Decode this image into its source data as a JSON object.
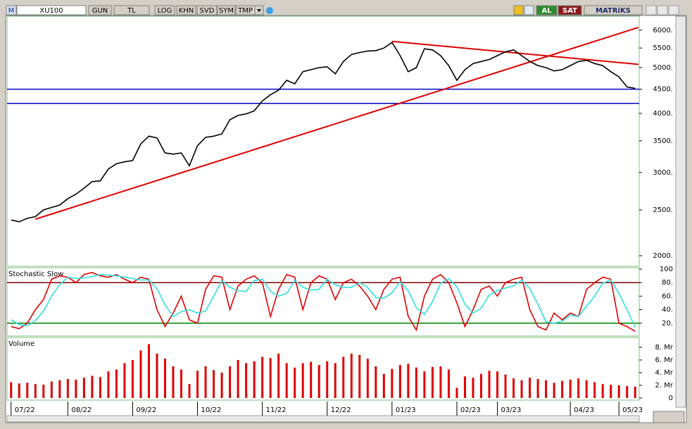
{
  "toolbar": {
    "logo": "M",
    "symbol": "XU100",
    "period": "GUN",
    "currency": "TL",
    "log": "LOG",
    "khn": "KHN",
    "svd": "SVD",
    "sym": "SYM",
    "tmp": "TMP",
    "buy": "AL",
    "sell": "SAT",
    "brand": "MATRiKS"
  },
  "chart_data": [
    {
      "type": "line",
      "log_scale": true,
      "ylim": [
        1900,
        6400
      ],
      "yticks": [
        {
          "value": 2000,
          "label": "2000."
        },
        {
          "value": 2500,
          "label": "2500."
        },
        {
          "value": 3000,
          "label": "3000."
        },
        {
          "value": 3500,
          "label": "3500."
        },
        {
          "value": 4000,
          "label": "4000."
        },
        {
          "value": 4500,
          "label": "4500."
        },
        {
          "value": 5000,
          "label": "5000."
        },
        {
          "value": 5500,
          "label": "5500."
        },
        {
          "value": 6000,
          "label": "6000."
        }
      ],
      "series": [
        {
          "color": "#000000",
          "values": [
            2380,
            2360,
            2400,
            2420,
            2500,
            2530,
            2560,
            2640,
            2700,
            2780,
            2870,
            2880,
            3050,
            3130,
            3160,
            3180,
            3450,
            3580,
            3550,
            3300,
            3280,
            3300,
            3100,
            3420,
            3560,
            3580,
            3620,
            3880,
            3960,
            3990,
            4050,
            4250,
            4380,
            4480,
            4700,
            4620,
            4900,
            4950,
            5000,
            5020,
            4850,
            5150,
            5330,
            5380,
            5420,
            5430,
            5500,
            5650,
            5300,
            4900,
            5000,
            5480,
            5450,
            5300,
            5050,
            4700,
            4950,
            5100,
            5150,
            5200,
            5300,
            5400,
            5450,
            5300,
            5150,
            5050,
            5000,
            4920,
            4950,
            5050,
            5150,
            5180,
            5100,
            5050,
            4900,
            4780,
            4550,
            4520
          ]
        }
      ],
      "trend_lines": [
        {
          "color": "#e00000",
          "x": [
            3,
            77.4
          ],
          "y": [
            2390,
            6080
          ]
        },
        {
          "color": "#e00000",
          "x": [
            47,
            77.4
          ],
          "y": [
            5680,
            5080
          ]
        }
      ],
      "hlines": [
        {
          "color": "#0000c0",
          "value": 4500
        },
        {
          "color": "#0000c0",
          "value": 4200
        }
      ]
    },
    {
      "type": "line",
      "title": "Stochastic Slow",
      "ylim": [
        0,
        100
      ],
      "yticks": [
        {
          "value": 20,
          "label": "20."
        },
        {
          "value": 40,
          "label": "40."
        },
        {
          "value": 60,
          "label": "60."
        },
        {
          "value": 80,
          "label": "80."
        },
        100
      ],
      "series": [
        {
          "color": "#e00000",
          "values": [
            15,
            12,
            20,
            40,
            55,
            85,
            90,
            88,
            80,
            92,
            95,
            90,
            88,
            92,
            85,
            80,
            88,
            85,
            40,
            15,
            35,
            60,
            25,
            20,
            70,
            90,
            88,
            40,
            75,
            85,
            90,
            80,
            30,
            70,
            92,
            88,
            40,
            80,
            90,
            85,
            55,
            80,
            85,
            75,
            60,
            40,
            70,
            85,
            88,
            30,
            10,
            60,
            85,
            92,
            80,
            50,
            15,
            40,
            70,
            75,
            60,
            80,
            85,
            88,
            40,
            15,
            10,
            35,
            25,
            35,
            30,
            70,
            80,
            88,
            85,
            20,
            15,
            8
          ]
        },
        {
          "color": "#30e0e0",
          "values": [
            25,
            18,
            16,
            24,
            38,
            60,
            77,
            88,
            86,
            87,
            89,
            92,
            91,
            90,
            88,
            86,
            84,
            84,
            71,
            47,
            30,
            37,
            40,
            35,
            38,
            60,
            83,
            73,
            68,
            67,
            83,
            85,
            67,
            60,
            64,
            83,
            73,
            69,
            70,
            85,
            77,
            73,
            73,
            80,
            73,
            58,
            57,
            65,
            81,
            68,
            43,
            33,
            52,
            79,
            86,
            74,
            48,
            35,
            42,
            62,
            68,
            72,
            75,
            84,
            71,
            48,
            22,
            20,
            23,
            32,
            30,
            45,
            60,
            79,
            84,
            64,
            40,
            14
          ]
        }
      ],
      "hlines": [
        {
          "color": "#800000",
          "value": 80
        },
        {
          "color": "#008000",
          "value": 20
        }
      ]
    },
    {
      "type": "bar",
      "title": "Volume",
      "ylim": [
        0,
        9.5
      ],
      "yticks": [
        0,
        {
          "value": 2,
          "label": "2. Mr"
        },
        {
          "value": 4,
          "label": "4. Mr"
        },
        {
          "value": 6,
          "label": "6. Mr"
        },
        {
          "value": 8,
          "label": "8. Mr"
        }
      ],
      "color": "#e00000",
      "categories": [
        "07/22",
        null,
        null,
        null,
        null,
        null,
        null,
        "08/22",
        null,
        null,
        null,
        null,
        null,
        null,
        null,
        "09/22",
        null,
        null,
        null,
        null,
        null,
        null,
        null,
        "10/22",
        null,
        null,
        null,
        null,
        null,
        null,
        null,
        "11/22",
        null,
        null,
        null,
        null,
        null,
        null,
        null,
        "12/22",
        null,
        null,
        null,
        null,
        null,
        null,
        null,
        "01/23",
        null,
        null,
        null,
        null,
        null,
        null,
        null,
        "02/23",
        null,
        null,
        null,
        null,
        "03/23",
        null,
        null,
        null,
        null,
        null,
        null,
        null,
        null,
        "04/23",
        null,
        null,
        null,
        null,
        null,
        "05/23",
        null,
        null
      ],
      "values": [
        2.5,
        2.3,
        2.4,
        2.2,
        2.1,
        2.6,
        2.8,
        3,
        2.9,
        3.2,
        3.5,
        3.3,
        4.2,
        4.5,
        5.5,
        6,
        7.5,
        8.5,
        7,
        6.2,
        5,
        4.5,
        2.2,
        4.3,
        5,
        4.4,
        4,
        5,
        6,
        5.5,
        5.8,
        6.5,
        6.3,
        7,
        5.5,
        4.8,
        5.5,
        5.7,
        5.2,
        5.8,
        5.5,
        6.5,
        7,
        6.8,
        6.2,
        5,
        3.8,
        4.6,
        5.2,
        5.4,
        4.8,
        4.2,
        4.9,
        5,
        4.5,
        1.6,
        3.4,
        3.2,
        3.8,
        4.3,
        4.2,
        3.7,
        3.1,
        2.8,
        3.2,
        3,
        2.8,
        2.4,
        2.7,
        2.9,
        3.1,
        2.8,
        2.5,
        2.2,
        2.1,
        2,
        1.9,
        1.8
      ]
    }
  ]
}
